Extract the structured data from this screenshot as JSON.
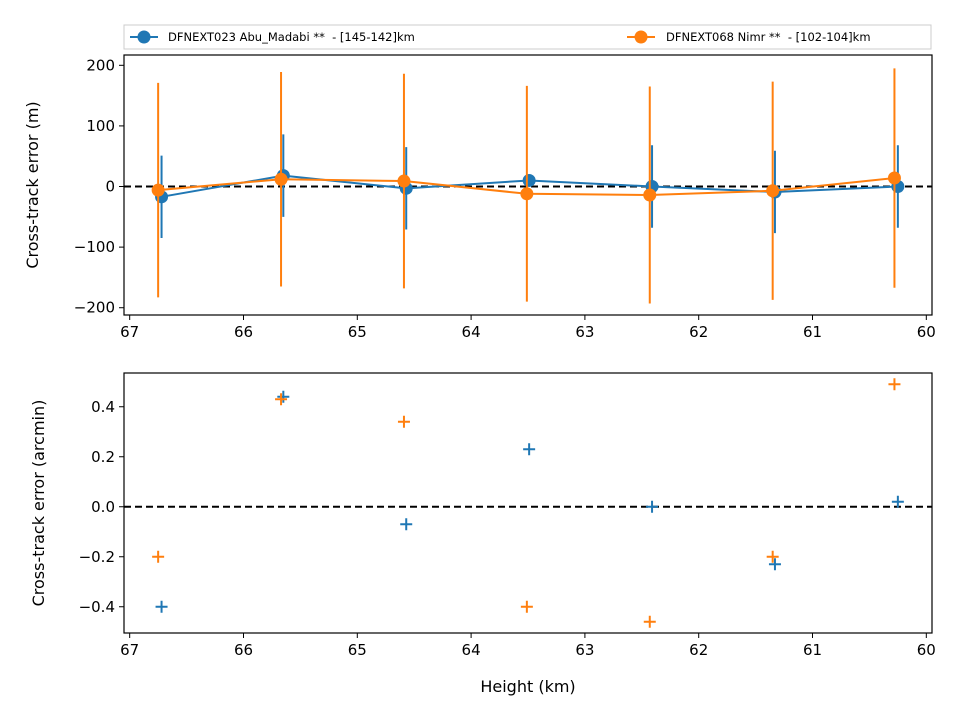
{
  "chart_data": [
    {
      "type": "line",
      "ylabel": "Cross-track error (m)",
      "xlabel": "",
      "xlim": [
        67.05,
        59.95
      ],
      "ylim": [
        -212,
        217
      ],
      "xticks": [
        67,
        66,
        65,
        64,
        63,
        62,
        61,
        60
      ],
      "yticks": [
        -200,
        -100,
        0,
        100,
        200
      ],
      "y_tick_labels": [
        "−200",
        "−100",
        "0",
        "100",
        "200"
      ],
      "reference_line": {
        "y": 0,
        "style": "dashed",
        "color": "#000000"
      },
      "legend": {
        "placement": "top",
        "columns": 2
      },
      "series": [
        {
          "name": "DFNEXT023 Abu_Madabi **  - [145-142]km",
          "color": "#1f77b4",
          "marker": "circle",
          "x": [
            66.72,
            65.65,
            64.57,
            63.49,
            62.41,
            61.33,
            60.25
          ],
          "y": [
            -17,
            18,
            -3,
            10,
            0,
            -9,
            0
          ],
          "yerr": [
            68,
            68,
            68,
            0,
            68,
            68,
            68
          ]
        },
        {
          "name": "DFNEXT068 Nimr **  - [102-104]km",
          "color": "#ff7f0e",
          "marker": "circle",
          "x": [
            66.75,
            65.67,
            64.59,
            63.51,
            62.43,
            61.35,
            60.28
          ],
          "y": [
            -6,
            12,
            9,
            -12,
            -14,
            -7,
            14
          ],
          "yerr": [
            177,
            177,
            177,
            178,
            179,
            180,
            181
          ]
        }
      ]
    },
    {
      "type": "scatter",
      "ylabel": "Cross-track error (arcmin)",
      "xlabel": "Height (km)",
      "xlim": [
        67.05,
        59.95
      ],
      "ylim": [
        -0.505,
        0.535
      ],
      "xticks": [
        67,
        66,
        65,
        64,
        63,
        62,
        61,
        60
      ],
      "yticks": [
        -0.4,
        -0.2,
        0.0,
        0.2,
        0.4
      ],
      "y_tick_labels": [
        "−0.4",
        "−0.2",
        "0.0",
        "0.2",
        "0.4"
      ],
      "reference_line": {
        "y": 0,
        "style": "dashed",
        "color": "#000000"
      },
      "series": [
        {
          "color": "#1f77b4",
          "marker": "plus",
          "x": [
            66.72,
            65.65,
            64.57,
            63.49,
            62.41,
            61.33,
            60.25
          ],
          "y": [
            -0.4,
            0.44,
            -0.07,
            0.23,
            0.0,
            -0.23,
            0.02
          ]
        },
        {
          "color": "#ff7f0e",
          "marker": "plus",
          "x": [
            66.75,
            65.67,
            64.59,
            63.51,
            62.43,
            61.35,
            60.28
          ],
          "y": [
            -0.2,
            0.43,
            0.34,
            -0.4,
            -0.46,
            -0.2,
            0.49
          ]
        }
      ]
    }
  ]
}
